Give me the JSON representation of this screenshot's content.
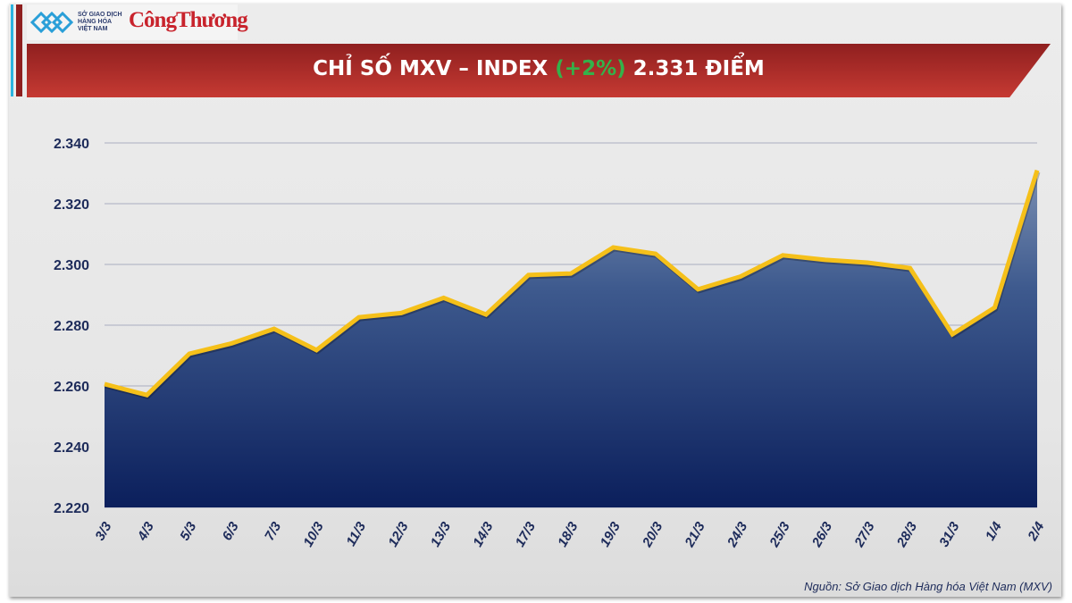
{
  "header": {
    "logo_sgd": "SỞ GIAO DỊCH\nHÀNG HÓA\nVIỆT NAM",
    "logo_ct": "CôngThương",
    "title_prefix": "CHỈ SỐ MXV – INDEX ",
    "title_change": "(+2%)",
    "title_suffix": " 2.331 ĐIỂM"
  },
  "source": "Nguồn: Sở Giao dịch Hàng hóa Việt Nam (MXV)",
  "colors": {
    "line": "#f5c01a",
    "fill_top": "#6f86ab",
    "fill_bottom": "#0e2260",
    "banner": "#b8312d",
    "accent_green": "#34b24a"
  },
  "chart_data": {
    "type": "area",
    "categories": [
      "3/3",
      "4/3",
      "5/3",
      "6/3",
      "7/3",
      "10/3",
      "11/3",
      "12/3",
      "13/3",
      "14/3",
      "17/3",
      "18/3",
      "19/3",
      "20/3",
      "21/3",
      "24/3",
      "25/3",
      "26/3",
      "27/3",
      "28/3",
      "31/3",
      "1/4",
      "2/4"
    ],
    "values": [
      2260.6,
      2257,
      2270.6,
      2274,
      2278.8,
      2271.8,
      2282.6,
      2284,
      2289,
      2283.5,
      2296.5,
      2297,
      2305.6,
      2303.5,
      2291.8,
      2296,
      2303,
      2301.5,
      2300.6,
      2298.8,
      2277,
      2285.8,
      2331
    ],
    "ylim": [
      2220,
      2340
    ],
    "yticks": [
      "2.220",
      "2.240",
      "2.260",
      "2.280",
      "2.300",
      "2.320",
      "2.340"
    ],
    "ytick_values": [
      2220,
      2240,
      2260,
      2280,
      2300,
      2320,
      2340
    ],
    "grid": true,
    "legend": "none"
  }
}
